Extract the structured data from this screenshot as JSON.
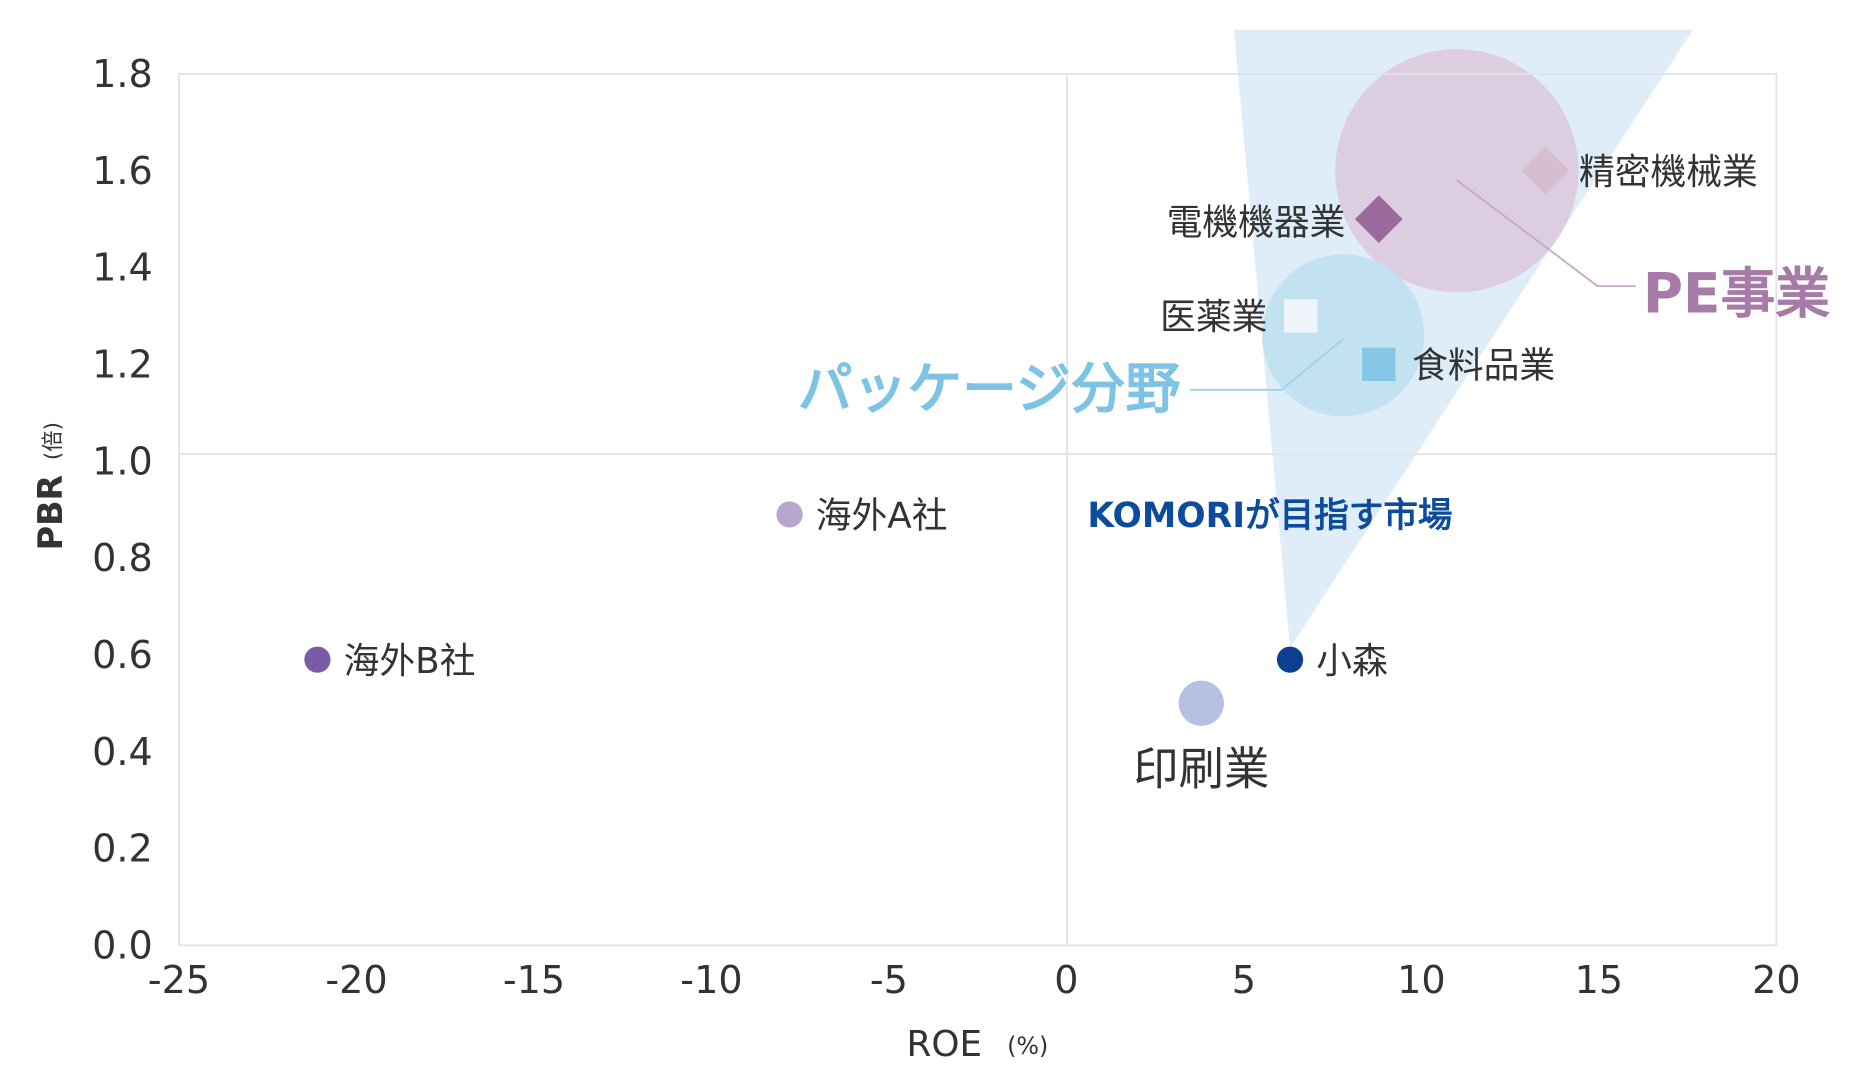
{
  "chart_data": {
    "type": "scatter",
    "xlabel": "ROE",
    "xlabel_unit": "(%)",
    "ylabel": "PBR",
    "ylabel_unit": "(倍)",
    "xlim": [
      -25,
      20
    ],
    "ylim": [
      0.0,
      1.8
    ],
    "x_ticks": [
      "-25",
      "-20",
      "-15",
      "-10",
      "-5",
      "0",
      "5",
      "10",
      "15",
      "20"
    ],
    "y_ticks": [
      "0.0",
      "0.2",
      "0.4",
      "0.6",
      "0.8",
      "1.0",
      "1.2",
      "1.4",
      "1.6",
      "1.8"
    ],
    "grid": "reference lines at x=0 and y=1.0",
    "points": [
      {
        "label": "海外B社",
        "x": -21.1,
        "y": 0.59,
        "shape": "circle",
        "color": "#7b5aa6"
      },
      {
        "label": "海外A社",
        "x": -7.8,
        "y": 0.89,
        "shape": "circle",
        "color": "#b9a6cc"
      },
      {
        "label": "小森",
        "x": 6.3,
        "y": 0.59,
        "shape": "circle",
        "color": "#0d3f8f"
      },
      {
        "label": "印刷業",
        "x": 3.8,
        "y": 0.5,
        "shape": "circle",
        "color": "#b7bfe3"
      },
      {
        "label": "電機機器業",
        "x": 8.8,
        "y": 1.5,
        "shape": "diamond",
        "color": "#9a6a9c"
      },
      {
        "label": "精密機械業",
        "x": 13.5,
        "y": 1.6,
        "shape": "diamond",
        "color": "#d6bdd2"
      },
      {
        "label": "医薬業",
        "x": 6.6,
        "y": 1.3,
        "shape": "square",
        "color": "#eef6fb"
      },
      {
        "label": "食料品業",
        "x": 8.8,
        "y": 1.2,
        "shape": "square",
        "color": "#86c6e6"
      }
    ],
    "regions": [
      {
        "label": "PE事業",
        "x": 11.0,
        "y": 1.6,
        "color": "#dcc7dc",
        "label_color": "#a77ba8"
      },
      {
        "label": "パッケージ分野",
        "x": 7.8,
        "y": 1.26,
        "color": "#bfe0f1",
        "label_color": "#7cc3e6"
      }
    ],
    "annotation": {
      "label": "KOMORIが目指す市場",
      "color": "#0d4c9c",
      "fill": "#d6e9f5"
    }
  }
}
